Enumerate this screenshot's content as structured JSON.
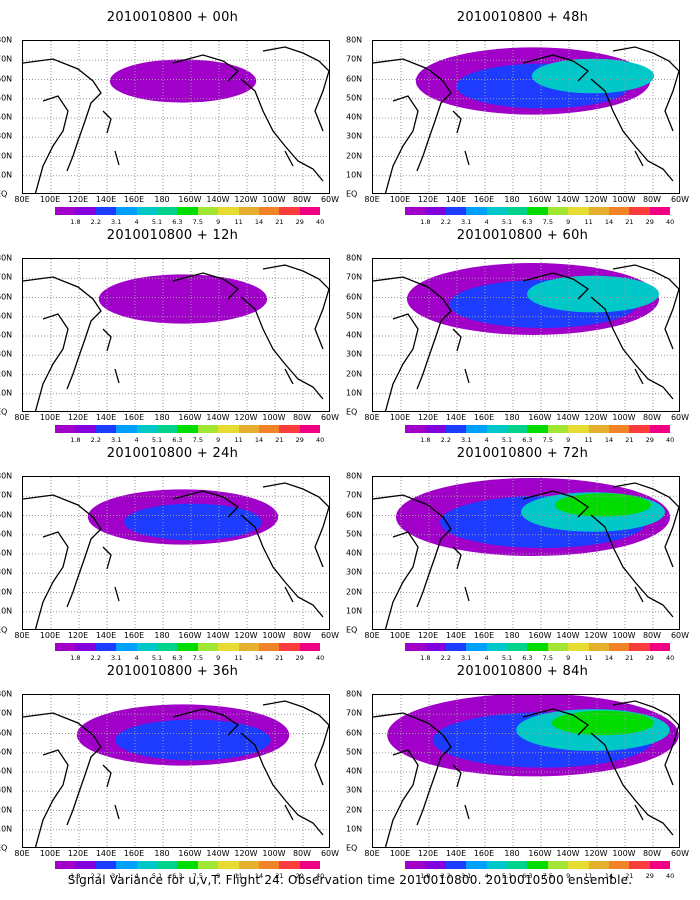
{
  "panels": [
    {
      "title": "2010010800 + 00h",
      "level": 0.12
    },
    {
      "title": "2010010800 + 48h",
      "level": 0.52
    },
    {
      "title": "2010010800 + 12h",
      "level": 0.22
    },
    {
      "title": "2010010800 + 60h",
      "level": 0.6
    },
    {
      "title": "2010010800 + 24h",
      "level": 0.32
    },
    {
      "title": "2010010800 + 72h",
      "level": 0.7
    },
    {
      "title": "2010010800 + 36h",
      "level": 0.42
    },
    {
      "title": "2010010800 + 84h",
      "level": 0.78
    }
  ],
  "latitude_labels": [
    "80N",
    "70N",
    "60N",
    "50N",
    "40N",
    "30N",
    "20N",
    "10N",
    "EQ"
  ],
  "longitude_labels": [
    "80E",
    "100E",
    "120E",
    "140E",
    "160E",
    "180",
    "160W",
    "140W",
    "120W",
    "100W",
    "80W",
    "60W"
  ],
  "colorbar": {
    "labels": [
      "1.8",
      "2.2",
      "3.1",
      "4",
      "5.1",
      "6.3",
      "7.5",
      "9",
      "11",
      "14",
      "21",
      "29",
      "40"
    ],
    "colors": [
      "#a000c8",
      "#8200dc",
      "#1e3cff",
      "#00a0ff",
      "#00c8c8",
      "#00d28c",
      "#00dc00",
      "#a0e632",
      "#e6dc32",
      "#e6af2d",
      "#f08228",
      "#fa3c3c",
      "#f00082"
    ]
  },
  "caption": "Signal Variance for u,v,T. Flight 24. Observation time 2010010800. 2010010500 ensemble."
}
